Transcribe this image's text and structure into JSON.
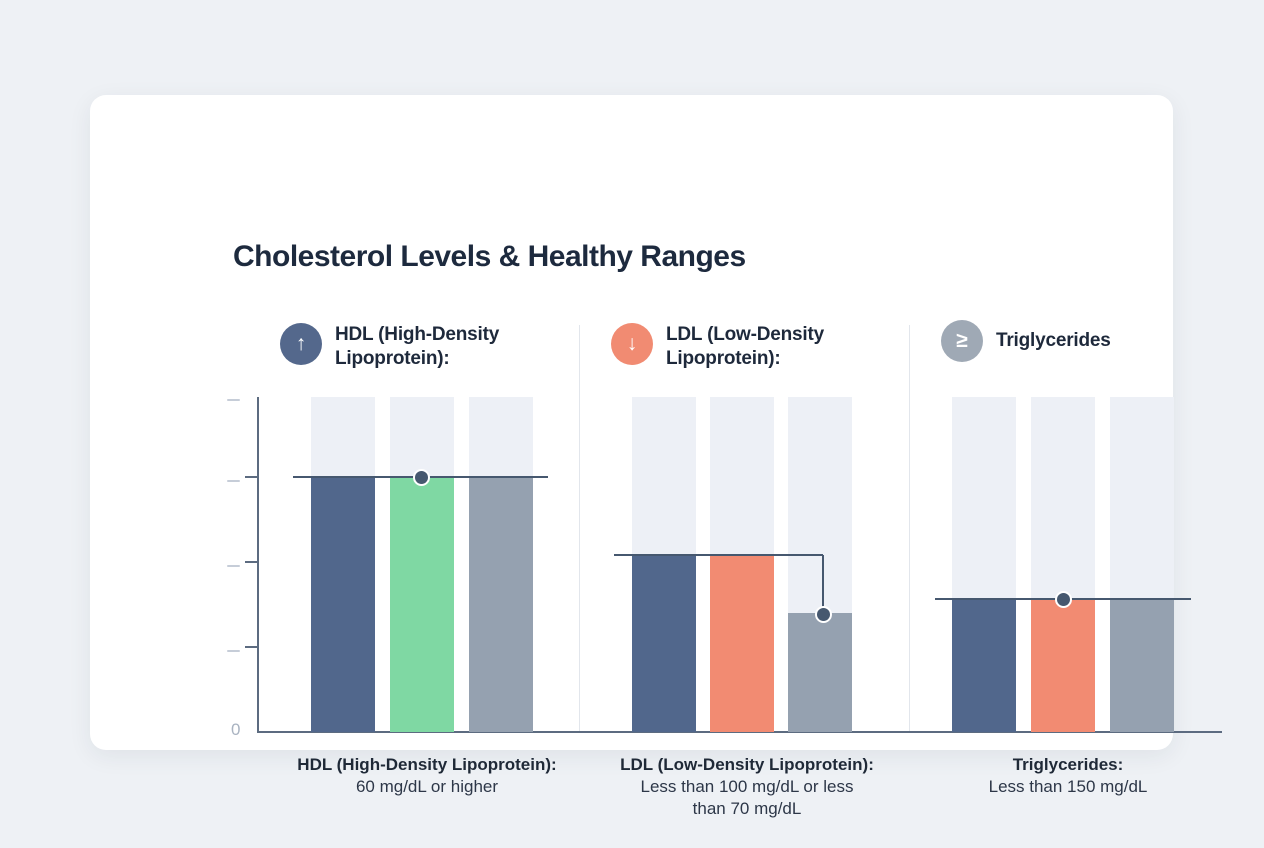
{
  "card": {
    "title": "Cholesterol Levels & Healthy Ranges"
  },
  "axis": {
    "zero_label": "0"
  },
  "panels": [
    {
      "header": {
        "icon": "arrow-up-icon",
        "icon_glyph": "↑",
        "icon_color": "#54688c",
        "label": "HDL (High-Density Lipoprotein):"
      },
      "caption": {
        "title": "HDL (High-Density Lipoprotein):",
        "lines": [
          "60 mg/dL or higher"
        ]
      }
    },
    {
      "header": {
        "icon": "arrow-down-icon",
        "icon_glyph": "↓",
        "icon_color": "#f18b72",
        "label": "LDL (Low-Density Lipoprotein):"
      },
      "caption": {
        "title": "LDL (Low-Density Lipoprotein):",
        "lines": [
          "Less than 100 mg/dL or less",
          "than 70 mg/dL"
        ]
      }
    },
    {
      "header": {
        "icon": "greater-equal-icon",
        "icon_glyph": "≥",
        "icon_color": "#9fa9b5",
        "label": "Triglycerides"
      },
      "caption": {
        "title": "Triglycerides:",
        "lines": [
          "Less than 150 mg/dL"
        ]
      }
    }
  ],
  "chart_data": {
    "type": "bar",
    "title": "Cholesterol Levels & Healthy Ranges",
    "ylabel": "",
    "y_zero_label": "0",
    "grid": false,
    "legend": "none",
    "track_color": "#edf0f6",
    "line_color": "#46586f",
    "note": "Three panels, each with 3 bars shown against full-height light track bars; a threshold line with a round marker indicates the healthy cutoff; y-axis ticks are unlabeled except 0.",
    "panels": [
      {
        "name": "HDL (High-Density Lipoprotein)",
        "healthy_range": "60 mg/dL or higher",
        "threshold_value": 60,
        "threshold_marker_bar": 1,
        "bars": [
          {
            "value": 60,
            "color": "#51678c"
          },
          {
            "value": 60,
            "color": "#7fd8a3"
          },
          {
            "value": 60,
            "color": "#95a1b0"
          }
        ]
      },
      {
        "name": "LDL (Low-Density Lipoprotein)",
        "healthy_range": "Less than 100 mg/dL or less than 70 mg/dL",
        "threshold_value": 100,
        "secondary_threshold_value": 70,
        "threshold_marker_bar": 2,
        "bars": [
          {
            "value": 100,
            "color": "#51678c"
          },
          {
            "value": 100,
            "color": "#f28b72"
          },
          {
            "value": 70,
            "color": "#95a1b0"
          }
        ]
      },
      {
        "name": "Triglycerides",
        "healthy_range": "Less than 150 mg/dL",
        "threshold_value": 150,
        "threshold_marker_bar": 1,
        "bars": [
          {
            "value": 150,
            "color": "#51678c"
          },
          {
            "value": 150,
            "color": "#f28b72"
          },
          {
            "value": 150,
            "color": "#95a1b0"
          }
        ]
      }
    ]
  }
}
